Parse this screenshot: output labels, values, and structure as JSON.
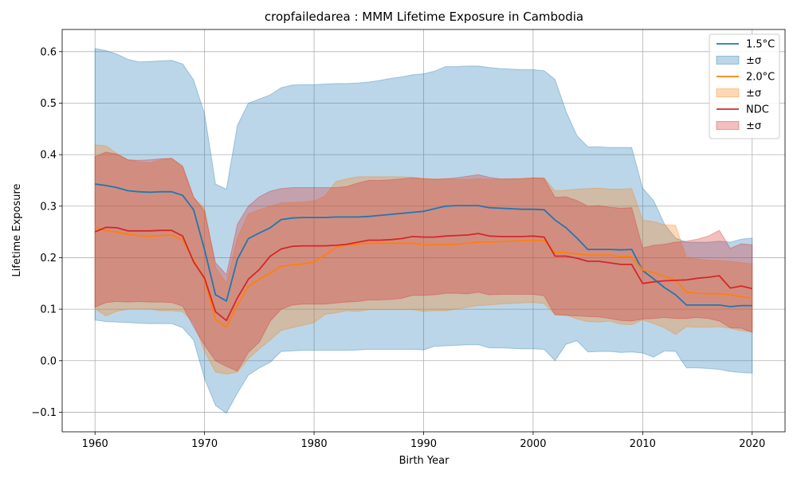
{
  "chart_data": {
    "type": "line",
    "title": "cropfailedarea : MMM Lifetime Exposure in Cambodia",
    "xlabel": "Birth Year",
    "ylabel": "Lifetime Exposure",
    "xlim": [
      1957,
      2023
    ],
    "ylim": [
      -0.138,
      0.643
    ],
    "grid": true,
    "legend_position": "top-right",
    "x_ticks": [
      1960,
      1970,
      1980,
      1990,
      2000,
      2010,
      2020
    ],
    "x_tick_labels": [
      "1960",
      "1970",
      "1980",
      "1990",
      "2000",
      "2010",
      "2020"
    ],
    "y_ticks": [
      -0.1,
      0.0,
      0.1,
      0.2,
      0.3,
      0.4,
      0.5,
      0.6
    ],
    "y_tick_labels": [
      "−0.1",
      "0.0",
      "0.1",
      "0.2",
      "0.3",
      "0.4",
      "0.5",
      "0.6"
    ],
    "x": [
      1960,
      1961,
      1962,
      1963,
      1964,
      1965,
      1966,
      1967,
      1968,
      1969,
      1970,
      1971,
      1972,
      1973,
      1974,
      1975,
      1976,
      1977,
      1978,
      1979,
      1980,
      1981,
      1982,
      1983,
      1984,
      1985,
      1986,
      1987,
      1988,
      1989,
      1990,
      1991,
      1992,
      1993,
      1994,
      1995,
      1996,
      1997,
      1998,
      1999,
      2000,
      2001,
      2002,
      2003,
      2004,
      2005,
      2006,
      2007,
      2008,
      2009,
      2010,
      2011,
      2012,
      2013,
      2014,
      2015,
      2016,
      2017,
      2018,
      2019,
      2020
    ],
    "series": [
      {
        "name": "1.5°C",
        "band_name": "±σ",
        "color": "#1f77b4",
        "values": [
          0.343,
          0.34,
          0.336,
          0.33,
          0.328,
          0.327,
          0.328,
          0.328,
          0.321,
          0.293,
          0.215,
          0.128,
          0.116,
          0.197,
          0.237,
          0.248,
          0.258,
          0.274,
          0.277,
          0.278,
          0.278,
          0.278,
          0.279,
          0.279,
          0.279,
          0.28,
          0.282,
          0.284,
          0.286,
          0.288,
          0.29,
          0.295,
          0.3,
          0.301,
          0.301,
          0.301,
          0.297,
          0.296,
          0.295,
          0.294,
          0.294,
          0.293,
          0.273,
          0.258,
          0.238,
          0.216,
          0.216,
          0.216,
          0.215,
          0.216,
          0.175,
          0.159,
          0.142,
          0.128,
          0.108,
          0.108,
          0.108,
          0.108,
          0.105,
          0.107,
          0.107
        ],
        "upper": [
          0.606,
          0.602,
          0.595,
          0.585,
          0.58,
          0.581,
          0.582,
          0.583,
          0.576,
          0.545,
          0.479,
          0.343,
          0.333,
          0.457,
          0.5,
          0.508,
          0.516,
          0.53,
          0.535,
          0.536,
          0.536,
          0.537,
          0.538,
          0.538,
          0.539,
          0.541,
          0.544,
          0.548,
          0.551,
          0.555,
          0.557,
          0.562,
          0.571,
          0.571,
          0.572,
          0.572,
          0.569,
          0.567,
          0.566,
          0.565,
          0.565,
          0.563,
          0.546,
          0.484,
          0.437,
          0.415,
          0.415,
          0.414,
          0.414,
          0.414,
          0.335,
          0.311,
          0.265,
          0.238,
          0.23,
          0.23,
          0.23,
          0.232,
          0.23,
          0.236,
          0.238
        ],
        "lower": [
          0.079,
          0.076,
          0.075,
          0.074,
          0.073,
          0.072,
          0.072,
          0.072,
          0.064,
          0.04,
          -0.035,
          -0.087,
          -0.102,
          -0.063,
          -0.028,
          -0.014,
          -0.003,
          0.018,
          0.019,
          0.02,
          0.02,
          0.02,
          0.02,
          0.02,
          0.021,
          0.022,
          0.022,
          0.022,
          0.022,
          0.022,
          0.021,
          0.028,
          0.029,
          0.03,
          0.031,
          0.031,
          0.025,
          0.025,
          0.024,
          0.023,
          0.023,
          0.022,
          0.0,
          0.032,
          0.039,
          0.017,
          0.018,
          0.018,
          0.016,
          0.017,
          0.015,
          0.007,
          0.019,
          0.018,
          -0.014,
          -0.014,
          -0.015,
          -0.017,
          -0.021,
          -0.023,
          -0.024
        ]
      },
      {
        "name": "2.0°C",
        "band_name": "±σ",
        "color": "#ff7f0e",
        "values": [
          0.26,
          0.252,
          0.25,
          0.245,
          0.243,
          0.241,
          0.243,
          0.244,
          0.235,
          0.195,
          0.157,
          0.08,
          0.065,
          0.108,
          0.144,
          0.158,
          0.17,
          0.183,
          0.186,
          0.188,
          0.192,
          0.205,
          0.22,
          0.225,
          0.226,
          0.228,
          0.228,
          0.228,
          0.228,
          0.228,
          0.225,
          0.225,
          0.225,
          0.226,
          0.228,
          0.23,
          0.23,
          0.231,
          0.232,
          0.233,
          0.234,
          0.233,
          0.21,
          0.21,
          0.207,
          0.205,
          0.205,
          0.205,
          0.202,
          0.202,
          0.176,
          0.171,
          0.164,
          0.157,
          0.133,
          0.131,
          0.13,
          0.13,
          0.128,
          0.124,
          0.122
        ],
        "upper": [
          0.419,
          0.417,
          0.402,
          0.39,
          0.386,
          0.384,
          0.39,
          0.393,
          0.375,
          0.316,
          0.296,
          0.181,
          0.15,
          0.238,
          0.285,
          0.293,
          0.3,
          0.306,
          0.307,
          0.308,
          0.31,
          0.32,
          0.348,
          0.353,
          0.357,
          0.357,
          0.357,
          0.357,
          0.357,
          0.356,
          0.354,
          0.353,
          0.353,
          0.352,
          0.352,
          0.353,
          0.352,
          0.352,
          0.353,
          0.354,
          0.355,
          0.355,
          0.33,
          0.331,
          0.333,
          0.334,
          0.335,
          0.333,
          0.333,
          0.334,
          0.273,
          0.27,
          0.264,
          0.263,
          0.2,
          0.197,
          0.195,
          0.194,
          0.193,
          0.19,
          0.188
        ],
        "lower": [
          0.101,
          0.087,
          0.096,
          0.1,
          0.1,
          0.1,
          0.097,
          0.097,
          0.095,
          0.074,
          0.018,
          -0.022,
          -0.026,
          -0.022,
          0.004,
          0.023,
          0.04,
          0.059,
          0.064,
          0.069,
          0.074,
          0.09,
          0.093,
          0.097,
          0.096,
          0.099,
          0.099,
          0.099,
          0.099,
          0.099,
          0.096,
          0.097,
          0.097,
          0.1,
          0.104,
          0.107,
          0.108,
          0.11,
          0.111,
          0.112,
          0.113,
          0.111,
          0.09,
          0.089,
          0.081,
          0.076,
          0.075,
          0.077,
          0.071,
          0.07,
          0.079,
          0.072,
          0.064,
          0.051,
          0.066,
          0.065,
          0.065,
          0.066,
          0.063,
          0.058,
          0.056
        ]
      },
      {
        "name": "NDC",
        "band_name": "±σ",
        "color": "#d62728",
        "values": [
          0.25,
          0.259,
          0.258,
          0.252,
          0.252,
          0.252,
          0.253,
          0.253,
          0.242,
          0.192,
          0.16,
          0.095,
          0.078,
          0.122,
          0.158,
          0.177,
          0.203,
          0.217,
          0.222,
          0.223,
          0.223,
          0.223,
          0.224,
          0.226,
          0.23,
          0.234,
          0.234,
          0.235,
          0.237,
          0.241,
          0.24,
          0.24,
          0.242,
          0.243,
          0.244,
          0.247,
          0.242,
          0.241,
          0.241,
          0.241,
          0.242,
          0.24,
          0.203,
          0.203,
          0.199,
          0.193,
          0.193,
          0.19,
          0.187,
          0.187,
          0.15,
          0.153,
          0.155,
          0.156,
          0.157,
          0.16,
          0.162,
          0.165,
          0.141,
          0.145,
          0.14
        ],
        "upper": [
          0.396,
          0.405,
          0.401,
          0.39,
          0.389,
          0.39,
          0.392,
          0.393,
          0.378,
          0.318,
          0.29,
          0.19,
          0.167,
          0.265,
          0.3,
          0.318,
          0.329,
          0.334,
          0.336,
          0.336,
          0.336,
          0.336,
          0.336,
          0.338,
          0.345,
          0.35,
          0.35,
          0.351,
          0.353,
          0.355,
          0.353,
          0.352,
          0.353,
          0.355,
          0.358,
          0.361,
          0.356,
          0.353,
          0.353,
          0.353,
          0.355,
          0.354,
          0.317,
          0.318,
          0.311,
          0.3,
          0.301,
          0.298,
          0.296,
          0.297,
          0.219,
          0.224,
          0.226,
          0.23,
          0.232,
          0.236,
          0.242,
          0.253,
          0.218,
          0.227,
          0.225
        ],
        "lower": [
          0.104,
          0.113,
          0.115,
          0.114,
          0.115,
          0.114,
          0.114,
          0.113,
          0.106,
          0.066,
          0.03,
          0.0,
          -0.011,
          -0.02,
          0.016,
          0.036,
          0.077,
          0.1,
          0.108,
          0.11,
          0.11,
          0.11,
          0.112,
          0.114,
          0.115,
          0.118,
          0.118,
          0.119,
          0.121,
          0.127,
          0.127,
          0.128,
          0.131,
          0.131,
          0.13,
          0.133,
          0.128,
          0.129,
          0.129,
          0.129,
          0.129,
          0.126,
          0.089,
          0.088,
          0.087,
          0.086,
          0.085,
          0.082,
          0.078,
          0.077,
          0.081,
          0.082,
          0.084,
          0.082,
          0.082,
          0.084,
          0.082,
          0.077,
          0.064,
          0.063,
          0.055
        ]
      }
    ]
  }
}
